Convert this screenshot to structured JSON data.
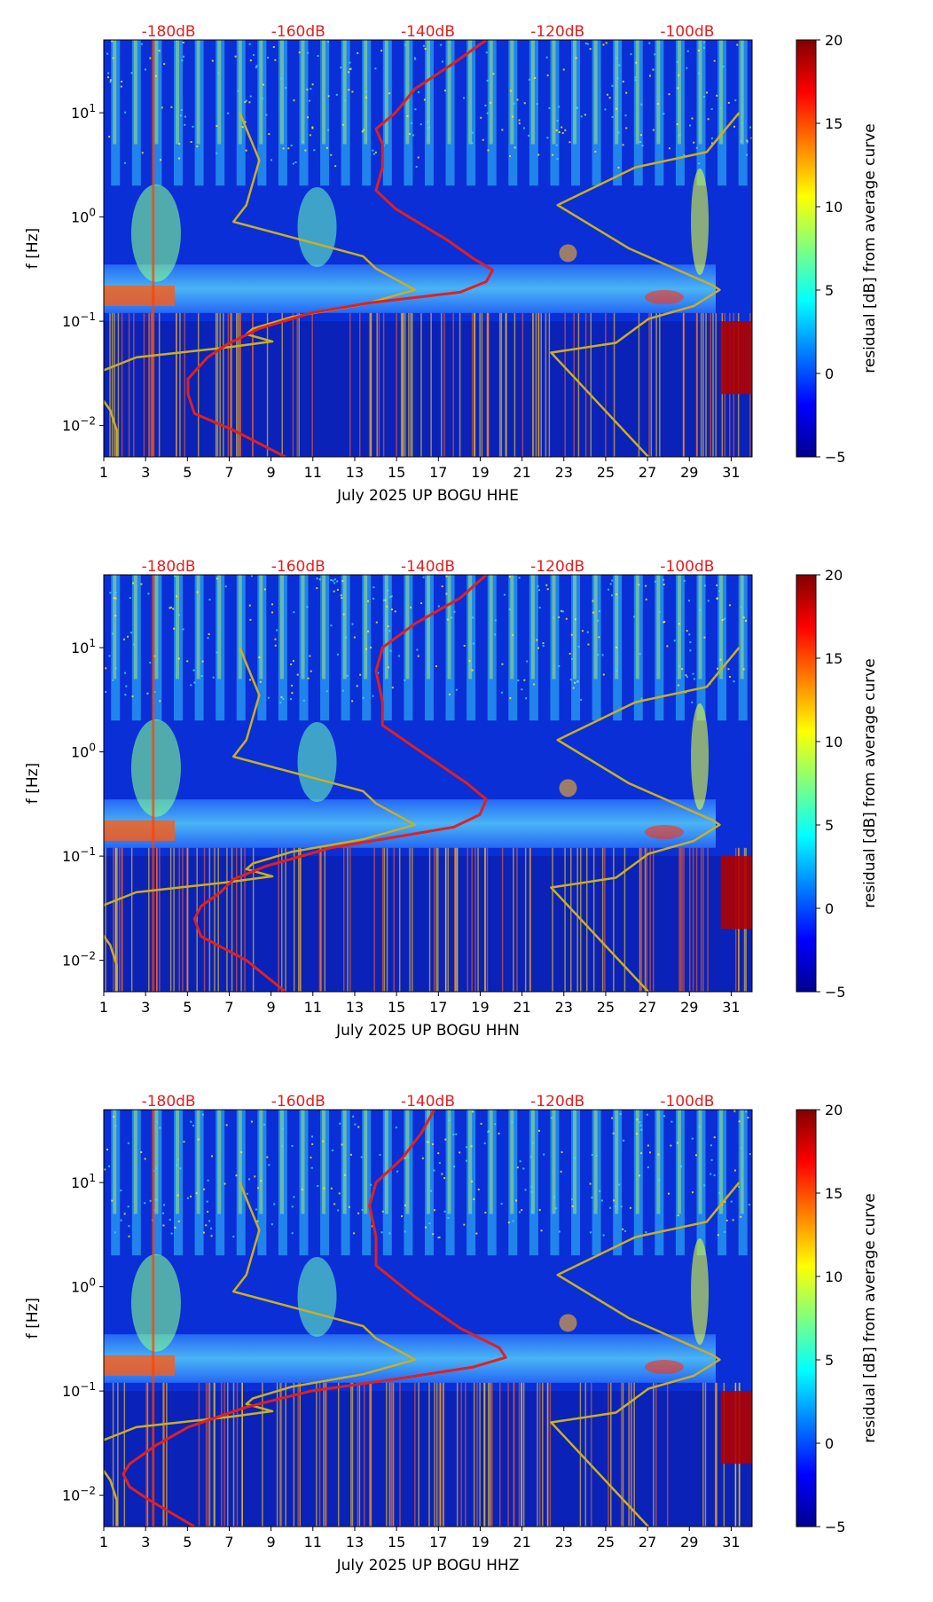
{
  "chart_data": [
    {
      "type": "heatmap",
      "xlabel": "July 2025 UP BOGU  HHE",
      "ylabel": "f [Hz]",
      "x_ticks": [
        1,
        3,
        5,
        7,
        9,
        11,
        13,
        15,
        17,
        19,
        21,
        23,
        25,
        27,
        29,
        31
      ],
      "xlim": [
        1,
        32
      ],
      "y_scale": "log",
      "ylim": [
        0.005,
        50
      ],
      "y_ticks": [
        "10^-2",
        "10^-1",
        "10^0",
        "10^1"
      ],
      "top_ticks": [
        "-180dB",
        "-160dB",
        "-140dB",
        "-120dB",
        "-100dB"
      ],
      "top_axis_range_db": [
        -190,
        -90
      ],
      "colorbar": {
        "label": "residual [dB] from average curve",
        "min": -5,
        "max": 20,
        "ticks": [
          -5,
          0,
          5,
          10,
          15,
          20
        ]
      },
      "series": [
        {
          "color": "#c8b022",
          "points": [
            [
              -188,
              0.005
            ],
            [
              -188,
              0.009
            ],
            [
              -189,
              0.014
            ],
            [
              -191,
              0.021
            ],
            [
              -191,
              0.032
            ],
            [
              -185,
              0.045
            ],
            [
              -170,
              0.057
            ],
            [
              -164,
              0.064
            ],
            [
              -168,
              0.075
            ],
            [
              -167,
              0.085
            ],
            [
              -161,
              0.11
            ],
            [
              -150,
              0.145
            ],
            [
              -142,
              0.2
            ],
            [
              -148,
              0.32
            ],
            [
              -150,
              0.42
            ],
            [
              -170,
              0.9
            ],
            [
              -168,
              1.3
            ],
            [
              -166,
              3.5
            ],
            [
              -168,
              7
            ],
            [
              -169,
              10
            ]
          ]
        },
        {
          "color": "#c8b022",
          "points": [
            [
              -106,
              0.005
            ],
            [
              -121,
              0.05
            ],
            [
              -111,
              0.062
            ],
            [
              -106,
              0.105
            ],
            [
              -99,
              0.14
            ],
            [
              -95,
              0.2
            ],
            [
              -96,
              0.22
            ],
            [
              -109,
              0.5
            ],
            [
              -120,
              1.3
            ],
            [
              -108,
              3
            ],
            [
              -97,
              4.2
            ],
            [
              -92,
              10
            ]
          ]
        },
        {
          "color": "#e02020",
          "points": [
            [
              -162,
              0.005
            ],
            [
              -170,
              0.009
            ],
            [
              -176,
              0.013
            ],
            [
              -177,
              0.02
            ],
            [
              -177,
              0.028
            ],
            [
              -174,
              0.045
            ],
            [
              -171,
              0.06
            ],
            [
              -166,
              0.085
            ],
            [
              -158,
              0.12
            ],
            [
              -149,
              0.15
            ],
            [
              -135,
              0.19
            ],
            [
              -131,
              0.24
            ],
            [
              -130,
              0.31
            ],
            [
              -133,
              0.4
            ],
            [
              -137,
              0.6
            ],
            [
              -145,
              1.2
            ],
            [
              -148,
              1.8
            ],
            [
              -147,
              3
            ],
            [
              -147,
              5
            ],
            [
              -148,
              7
            ],
            [
              -145,
              10
            ],
            [
              -142,
              17
            ],
            [
              -136,
              30
            ],
            [
              -131,
              50
            ]
          ]
        }
      ]
    },
    {
      "type": "heatmap",
      "xlabel": "July 2025 UP BOGU  HHN",
      "ylabel": "f [Hz]",
      "x_ticks": [
        1,
        3,
        5,
        7,
        9,
        11,
        13,
        15,
        17,
        19,
        21,
        23,
        25,
        27,
        29,
        31
      ],
      "xlim": [
        1,
        32
      ],
      "y_scale": "log",
      "ylim": [
        0.005,
        50
      ],
      "y_ticks": [
        "10^-2",
        "10^-1",
        "10^0",
        "10^1"
      ],
      "top_ticks": [
        "-180dB",
        "-160dB",
        "-140dB",
        "-120dB",
        "-100dB"
      ],
      "top_axis_range_db": [
        -190,
        -90
      ],
      "colorbar": {
        "label": "residual [dB] from average curve",
        "min": -5,
        "max": 20,
        "ticks": [
          -5,
          0,
          5,
          10,
          15,
          20
        ]
      },
      "series": [
        {
          "color": "#c8b022",
          "points": [
            [
              -188,
              0.005
            ],
            [
              -188,
              0.009
            ],
            [
              -189,
              0.014
            ],
            [
              -191,
              0.021
            ],
            [
              -191,
              0.032
            ],
            [
              -185,
              0.045
            ],
            [
              -170,
              0.057
            ],
            [
              -164,
              0.064
            ],
            [
              -168,
              0.075
            ],
            [
              -167,
              0.085
            ],
            [
              -161,
              0.11
            ],
            [
              -150,
              0.145
            ],
            [
              -142,
              0.2
            ],
            [
              -148,
              0.32
            ],
            [
              -150,
              0.42
            ],
            [
              -170,
              0.9
            ],
            [
              -168,
              1.3
            ],
            [
              -166,
              3.5
            ],
            [
              -168,
              7
            ],
            [
              -169,
              10
            ]
          ]
        },
        {
          "color": "#c8b022",
          "points": [
            [
              -106,
              0.005
            ],
            [
              -121,
              0.05
            ],
            [
              -111,
              0.062
            ],
            [
              -106,
              0.105
            ],
            [
              -99,
              0.14
            ],
            [
              -95,
              0.2
            ],
            [
              -96,
              0.22
            ],
            [
              -109,
              0.5
            ],
            [
              -120,
              1.3
            ],
            [
              -108,
              3
            ],
            [
              -97,
              4.2
            ],
            [
              -92,
              10
            ]
          ]
        },
        {
          "color": "#e02020",
          "points": [
            [
              -162,
              0.005
            ],
            [
              -168,
              0.01
            ],
            [
              -175,
              0.017
            ],
            [
              -176,
              0.025
            ],
            [
              -175,
              0.033
            ],
            [
              -172,
              0.045
            ],
            [
              -170,
              0.06
            ],
            [
              -165,
              0.08
            ],
            [
              -155,
              0.12
            ],
            [
              -143,
              0.16
            ],
            [
              -136,
              0.19
            ],
            [
              -132,
              0.25
            ],
            [
              -131,
              0.35
            ],
            [
              -134,
              0.5
            ],
            [
              -140,
              0.9
            ],
            [
              -147,
              1.8
            ],
            [
              -147,
              3
            ],
            [
              -148,
              6
            ],
            [
              -147,
              10
            ],
            [
              -142,
              17
            ],
            [
              -135,
              30
            ],
            [
              -131,
              50
            ]
          ]
        }
      ]
    },
    {
      "type": "heatmap",
      "xlabel": "July 2025 UP BOGU  HHZ",
      "ylabel": "f [Hz]",
      "x_ticks": [
        1,
        3,
        5,
        7,
        9,
        11,
        13,
        15,
        17,
        19,
        21,
        23,
        25,
        27,
        29,
        31
      ],
      "xlim": [
        1,
        32
      ],
      "y_scale": "log",
      "ylim": [
        0.005,
        50
      ],
      "y_ticks": [
        "10^-2",
        "10^-1",
        "10^0",
        "10^1"
      ],
      "top_ticks": [
        "-180dB",
        "-160dB",
        "-140dB",
        "-120dB",
        "-100dB"
      ],
      "top_axis_range_db": [
        -190,
        -90
      ],
      "colorbar": {
        "label": "residual [dB] from average curve",
        "min": -5,
        "max": 20,
        "ticks": [
          -5,
          0,
          5,
          10,
          15,
          20
        ]
      },
      "series": [
        {
          "color": "#c8b022",
          "points": [
            [
              -188,
              0.005
            ],
            [
              -188,
              0.009
            ],
            [
              -189,
              0.014
            ],
            [
              -191,
              0.021
            ],
            [
              -191,
              0.032
            ],
            [
              -185,
              0.045
            ],
            [
              -170,
              0.057
            ],
            [
              -164,
              0.064
            ],
            [
              -168,
              0.075
            ],
            [
              -167,
              0.085
            ],
            [
              -161,
              0.11
            ],
            [
              -150,
              0.145
            ],
            [
              -142,
              0.2
            ],
            [
              -148,
              0.32
            ],
            [
              -150,
              0.42
            ],
            [
              -170,
              0.9
            ],
            [
              -168,
              1.3
            ],
            [
              -166,
              3.5
            ],
            [
              -168,
              7
            ],
            [
              -169,
              10
            ]
          ]
        },
        {
          "color": "#c8b022",
          "points": [
            [
              -106,
              0.005
            ],
            [
              -121,
              0.05
            ],
            [
              -111,
              0.062
            ],
            [
              -106,
              0.105
            ],
            [
              -99,
              0.14
            ],
            [
              -95,
              0.2
            ],
            [
              -96,
              0.22
            ],
            [
              -109,
              0.5
            ],
            [
              -120,
              1.3
            ],
            [
              -108,
              3
            ],
            [
              -97,
              4.2
            ],
            [
              -92,
              10
            ]
          ]
        },
        {
          "color": "#e02020",
          "points": [
            [
              -176,
              0.005
            ],
            [
              -183,
              0.009
            ],
            [
              -186,
              0.012
            ],
            [
              -187,
              0.016
            ],
            [
              -186,
              0.02
            ],
            [
              -182,
              0.03
            ],
            [
              -177,
              0.045
            ],
            [
              -168,
              0.07
            ],
            [
              -158,
              0.1
            ],
            [
              -145,
              0.13
            ],
            [
              -133,
              0.17
            ],
            [
              -128,
              0.21
            ],
            [
              -129,
              0.26
            ],
            [
              -135,
              0.4
            ],
            [
              -142,
              0.8
            ],
            [
              -148,
              1.6
            ],
            [
              -148,
              3
            ],
            [
              -149,
              6
            ],
            [
              -148,
              10
            ],
            [
              -144,
              17
            ],
            [
              -141,
              30
            ],
            [
              -139,
              50
            ]
          ]
        }
      ]
    }
  ]
}
